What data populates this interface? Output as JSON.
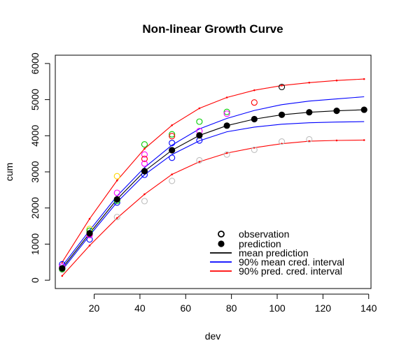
{
  "chart_data": {
    "type": "scatter",
    "title": "Non-linear Growth Curve",
    "xlabel": "dev",
    "ylabel": "cum",
    "xlim": [
      3,
      141
    ],
    "ylim": [
      -230,
      6230
    ],
    "x_ticks": [
      20,
      40,
      60,
      80,
      100,
      120,
      140
    ],
    "y_ticks": [
      0,
      1000,
      2000,
      3000,
      4000,
      5000,
      6000
    ],
    "grid": false,
    "legend_position": "bottom-right",
    "legend": [
      {
        "label": "observation",
        "kind": "open-circle",
        "color": "#000000"
      },
      {
        "label": "prediction",
        "kind": "filled-circle",
        "color": "#000000"
      },
      {
        "label": "mean prediction",
        "kind": "line",
        "color": "#000000"
      },
      {
        "label": "90% mean cred. interval",
        "kind": "line",
        "color": "#0000ff"
      },
      {
        "label": "90% pred. cred. interval",
        "kind": "line",
        "color": "#ff0000"
      }
    ],
    "x": [
      6,
      18,
      30,
      42,
      54,
      66,
      78,
      90,
      102,
      114,
      126,
      138
    ],
    "series": [
      {
        "name": "mean prediction",
        "color": "#000000",
        "values": [
          330,
          1300,
          2240,
          3020,
          3600,
          4010,
          4280,
          4460,
          4580,
          4650,
          4690,
          4720
        ]
      },
      {
        "name": "90% mean cred. interval",
        "color": "#0000ff",
        "role": "upper",
        "values": [
          390,
          1380,
          2330,
          3120,
          3740,
          4190,
          4480,
          4700,
          4860,
          4960,
          5020,
          5080
        ]
      },
      {
        "name": "90% mean cred. interval",
        "color": "#0000ff",
        "role": "lower",
        "values": [
          280,
          1240,
          2160,
          2920,
          3480,
          3860,
          4110,
          4240,
          4320,
          4360,
          4380,
          4390
        ]
      },
      {
        "name": "90% pred. cred. interval",
        "color": "#ff0000",
        "role": "upper",
        "values": [
          500,
          1700,
          2760,
          3640,
          4290,
          4760,
          5060,
          5260,
          5390,
          5470,
          5530,
          5570
        ]
      },
      {
        "name": "90% pred. cred. interval",
        "color": "#ff0000",
        "role": "lower",
        "values": [
          120,
          960,
          1720,
          2380,
          2930,
          3280,
          3520,
          3670,
          3780,
          3850,
          3870,
          3880
        ]
      }
    ],
    "predictions": [
      {
        "x": 6,
        "y": 330
      },
      {
        "x": 18,
        "y": 1300
      },
      {
        "x": 30,
        "y": 2240
      },
      {
        "x": 42,
        "y": 3020
      },
      {
        "x": 54,
        "y": 3600
      },
      {
        "x": 66,
        "y": 4010
      },
      {
        "x": 78,
        "y": 4280
      },
      {
        "x": 90,
        "y": 4460
      },
      {
        "x": 102,
        "y": 4580
      },
      {
        "x": 114,
        "y": 4650
      },
      {
        "x": 126,
        "y": 4690
      },
      {
        "x": 138,
        "y": 4720
      }
    ],
    "observations": [
      {
        "x": 6,
        "y": 440,
        "color": "#0000ff"
      },
      {
        "x": 6,
        "y": 380,
        "color": "#ff00ff"
      },
      {
        "x": 6,
        "y": 290,
        "color": "#bebebe"
      },
      {
        "x": 6,
        "y": 310,
        "color": "#00cd00"
      },
      {
        "x": 18,
        "y": 1420,
        "color": "#ffd700"
      },
      {
        "x": 18,
        "y": 1370,
        "color": "#00cd00"
      },
      {
        "x": 18,
        "y": 1280,
        "color": "#ff0000"
      },
      {
        "x": 18,
        "y": 1130,
        "color": "#0000ff"
      },
      {
        "x": 18,
        "y": 1250,
        "color": "#ff00ff"
      },
      {
        "x": 30,
        "y": 2880,
        "color": "#ffd700"
      },
      {
        "x": 30,
        "y": 2420,
        "color": "#ff00ff"
      },
      {
        "x": 30,
        "y": 2150,
        "color": "#0000ff"
      },
      {
        "x": 30,
        "y": 2200,
        "color": "#00cd00"
      },
      {
        "x": 30,
        "y": 1750,
        "color": "#bebebe"
      },
      {
        "x": 42,
        "y": 3760,
        "color": "#00cd00"
      },
      {
        "x": 42,
        "y": 3480,
        "color": "#ff00ff"
      },
      {
        "x": 42,
        "y": 3360,
        "color": "#ff0000"
      },
      {
        "x": 42,
        "y": 3230,
        "color": "#ff00ff"
      },
      {
        "x": 42,
        "y": 2920,
        "color": "#0000ff"
      },
      {
        "x": 42,
        "y": 2190,
        "color": "#bebebe"
      },
      {
        "x": 54,
        "y": 4040,
        "color": "#00cd00"
      },
      {
        "x": 54,
        "y": 3990,
        "color": "#ff0000"
      },
      {
        "x": 54,
        "y": 3800,
        "color": "#0000ff"
      },
      {
        "x": 54,
        "y": 3390,
        "color": "#0000ff"
      },
      {
        "x": 54,
        "y": 2750,
        "color": "#bebebe"
      },
      {
        "x": 66,
        "y": 4390,
        "color": "#00cd00"
      },
      {
        "x": 66,
        "y": 4130,
        "color": "#ff00ff"
      },
      {
        "x": 66,
        "y": 3870,
        "color": "#0000ff"
      },
      {
        "x": 66,
        "y": 3320,
        "color": "#bebebe"
      },
      {
        "x": 78,
        "y": 4660,
        "color": "#00cd00"
      },
      {
        "x": 78,
        "y": 4610,
        "color": "#ff00ff"
      },
      {
        "x": 78,
        "y": 3480,
        "color": "#bebebe"
      },
      {
        "x": 90,
        "y": 4920,
        "color": "#ff0000"
      },
      {
        "x": 90,
        "y": 3610,
        "color": "#bebebe"
      },
      {
        "x": 102,
        "y": 5350,
        "color": "#000000"
      },
      {
        "x": 102,
        "y": 3840,
        "color": "#bebebe"
      },
      {
        "x": 114,
        "y": 3900,
        "color": "#bebebe"
      }
    ]
  }
}
